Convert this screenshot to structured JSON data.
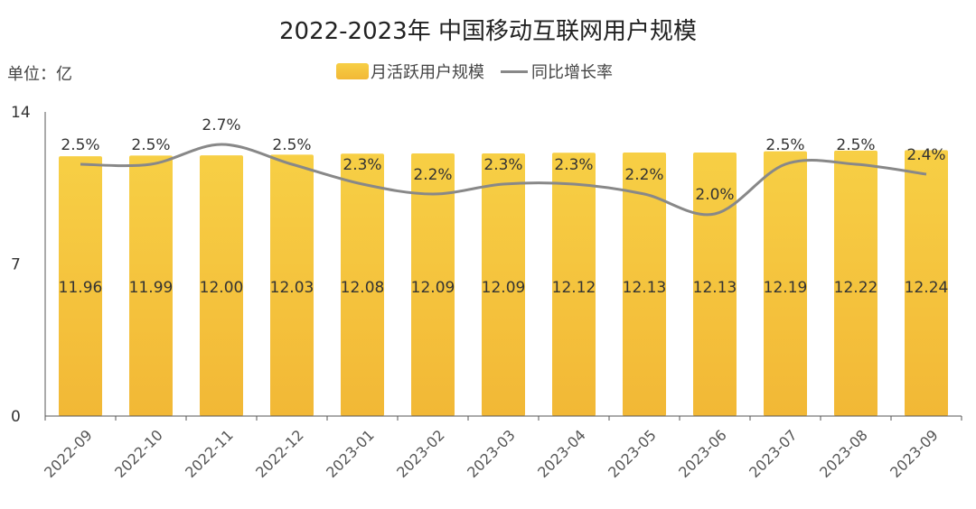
{
  "chart_data": {
    "type": "bar",
    "title": "2022-2023年 中国移动互联网用户规模",
    "unit_label": "单位：亿",
    "categories": [
      "2022-09",
      "2022-10",
      "2022-11",
      "2022-12",
      "2023-01",
      "2023-02",
      "2023-03",
      "2023-04",
      "2023-05",
      "2023-06",
      "2023-07",
      "2023-08",
      "2023-09"
    ],
    "series": [
      {
        "name": "月活跃用户规模",
        "type": "bar",
        "values": [
          11.96,
          11.99,
          12.0,
          12.03,
          12.08,
          12.09,
          12.09,
          12.12,
          12.13,
          12.13,
          12.19,
          12.22,
          12.24
        ]
      },
      {
        "name": "同比增长率",
        "type": "line",
        "values": [
          2.5,
          2.5,
          2.7,
          2.5,
          2.3,
          2.2,
          2.3,
          2.3,
          2.2,
          2.0,
          2.5,
          2.5,
          2.4
        ]
      }
    ],
    "value_labels": [
      "11.96",
      "11.99",
      "12.00",
      "12.03",
      "12.08",
      "12.09",
      "12.09",
      "12.12",
      "12.13",
      "12.13",
      "12.19",
      "12.22",
      "12.24"
    ],
    "pct_labels": [
      "2.5%",
      "2.5%",
      "2.7%",
      "2.5%",
      "2.3%",
      "2.2%",
      "2.3%",
      "2.3%",
      "2.2%",
      "2.0%",
      "2.5%",
      "2.5%",
      "2.4%"
    ],
    "yticks": [
      "0",
      "7",
      "14"
    ],
    "ylim": [
      0,
      14
    ],
    "legend_position": "top-center",
    "grid": false,
    "colors": {
      "bar_top": "#f7cf45",
      "bar_bottom": "#f2b836",
      "line": "#888888",
      "axis": "#555555"
    }
  }
}
